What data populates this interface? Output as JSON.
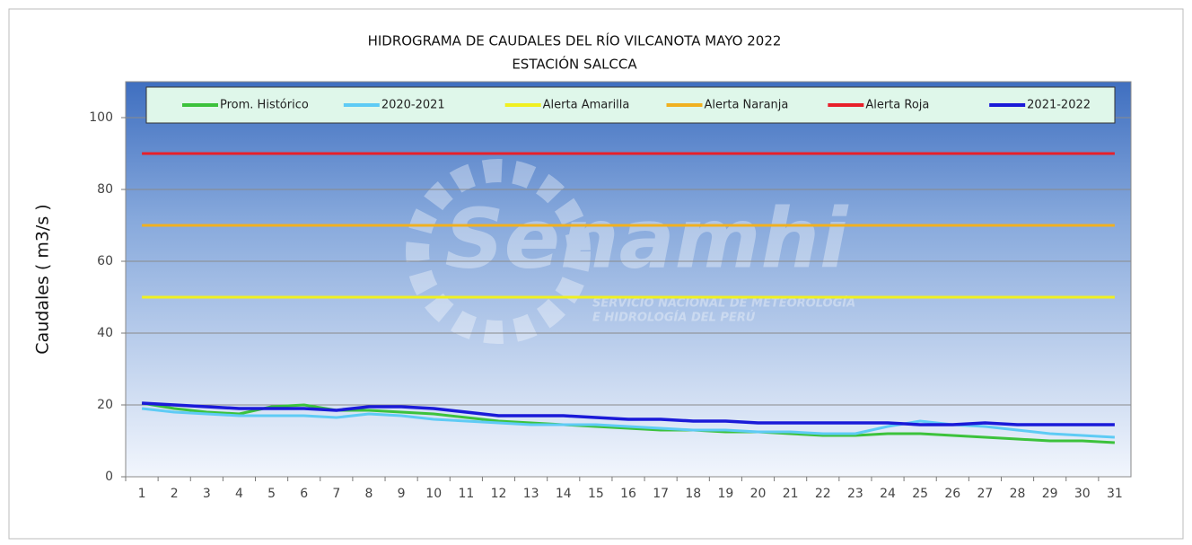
{
  "chart_data": {
    "type": "line",
    "title": "HIDROGRAMA DE CAUDALES DEL RÍO VILCANOTA MAYO 2022",
    "subtitle": "ESTACIÓN SALCCA",
    "y_label": "Caudales ( m3/s )",
    "watermark": {
      "name": "Senamhi",
      "text1": "SERVICIO NACIONAL DE METEOROLOGÍA",
      "text2": "E HIDROLOGÍA DEL PERÚ"
    },
    "categories": [
      "1",
      "2",
      "3",
      "4",
      "5",
      "6",
      "7",
      "8",
      "9",
      "10",
      "11",
      "12",
      "13",
      "14",
      "15",
      "16",
      "17",
      "18",
      "19",
      "20",
      "21",
      "22",
      "23",
      "24",
      "25",
      "26",
      "27",
      "28",
      "29",
      "30",
      "31"
    ],
    "series": [
      {
        "name": "Prom. Histórico",
        "color": "#3cc23c",
        "values": [
          20.5,
          19,
          18,
          17.5,
          19.5,
          20,
          18.5,
          18.5,
          18,
          17.5,
          16.5,
          15.5,
          15,
          14.5,
          14,
          13.5,
          13,
          13,
          12.5,
          12.5,
          12,
          11.5,
          11.5,
          12,
          12,
          11.5,
          11,
          10.5,
          10,
          10,
          9.5
        ]
      },
      {
        "name": "2020-2021",
        "color": "#5ecbf5",
        "values": [
          19,
          18,
          17.5,
          17,
          17,
          17,
          16.5,
          17.5,
          17,
          16,
          15.5,
          15,
          14.5,
          14.5,
          14.5,
          14,
          13.5,
          13,
          13,
          12.5,
          12.5,
          12,
          12,
          14,
          15.5,
          14.5,
          14,
          13,
          12,
          11.5,
          11
        ]
      },
      {
        "name": "Alerta Amarilla",
        "color": "#f0f020",
        "values": [
          50,
          50,
          50,
          50,
          50,
          50,
          50,
          50,
          50,
          50,
          50,
          50,
          50,
          50,
          50,
          50,
          50,
          50,
          50,
          50,
          50,
          50,
          50,
          50,
          50,
          50,
          50,
          50,
          50,
          50,
          50
        ]
      },
      {
        "name": "Alerta Naranja",
        "color": "#f0b020",
        "values": [
          70,
          70,
          70,
          70,
          70,
          70,
          70,
          70,
          70,
          70,
          70,
          70,
          70,
          70,
          70,
          70,
          70,
          70,
          70,
          70,
          70,
          70,
          70,
          70,
          70,
          70,
          70,
          70,
          70,
          70,
          70
        ]
      },
      {
        "name": "Alerta Roja",
        "color": "#e8202a",
        "values": [
          90,
          90,
          90,
          90,
          90,
          90,
          90,
          90,
          90,
          90,
          90,
          90,
          90,
          90,
          90,
          90,
          90,
          90,
          90,
          90,
          90,
          90,
          90,
          90,
          90,
          90,
          90,
          90,
          90,
          90,
          90
        ]
      },
      {
        "name": "2021-2022",
        "color": "#1a1ad8",
        "values": [
          20.5,
          20,
          19.5,
          19,
          19,
          19,
          18.5,
          19.5,
          19.5,
          19,
          18,
          17,
          17,
          17,
          16.5,
          16,
          16,
          15.5,
          15.5,
          15,
          15,
          15,
          15,
          15,
          14.5,
          14.5,
          15,
          14.5,
          14.5,
          14.5,
          14.5
        ]
      }
    ],
    "ylim": [
      0,
      110
    ],
    "yticks": [
      0,
      20,
      40,
      60,
      80,
      100
    ],
    "grid": true
  }
}
